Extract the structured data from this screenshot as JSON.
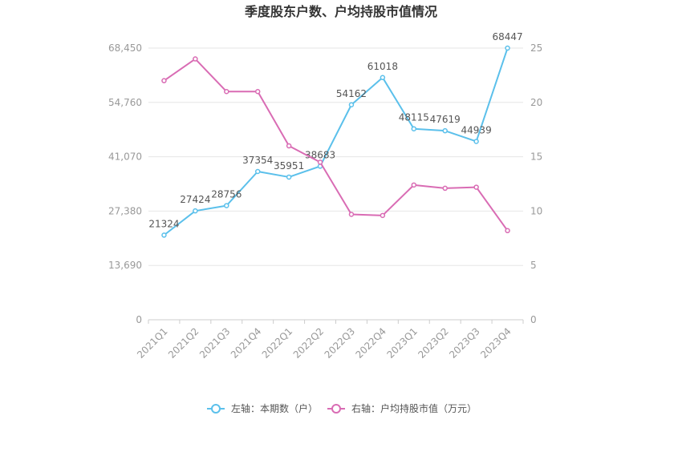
{
  "chart_data": {
    "type": "line",
    "title": "季度股东户数、户均持股市值情况",
    "categories": [
      "2021Q1",
      "2021Q2",
      "2021Q3",
      "2021Q4",
      "2022Q1",
      "2022Q2",
      "2022Q3",
      "2022Q4",
      "2023Q1",
      "2023Q2",
      "2023Q3",
      "2023Q4"
    ],
    "series": [
      {
        "name": "左轴：本期数（户）",
        "axis": "left",
        "color": "#5bc0eb",
        "values": [
          21324,
          27424,
          28756,
          37354,
          35951,
          38683,
          54162,
          61018,
          48115,
          47619,
          44939,
          68447
        ],
        "labels": [
          "21324",
          "27424",
          "28756",
          "37354",
          "35951",
          "38683",
          "54162",
          "61018",
          "48115",
          "47619",
          "44939",
          "68447"
        ]
      },
      {
        "name": "右轴：户均持股市值（万元）",
        "axis": "right",
        "color": "#d96cb4",
        "values": [
          22.0,
          24.0,
          21.0,
          21.0,
          16.0,
          14.5,
          9.7,
          9.6,
          12.4,
          12.1,
          12.2,
          8.2
        ]
      }
    ],
    "y_left": {
      "min": 0,
      "max": 68450,
      "ticks": [
        0,
        13690,
        27380,
        41070,
        54760,
        68450
      ],
      "tick_labels": [
        "0",
        "13,690",
        "27,380",
        "41,070",
        "54,760",
        "68,450"
      ]
    },
    "y_right": {
      "min": 0,
      "max": 25,
      "ticks": [
        0,
        5,
        10,
        15,
        20,
        25
      ],
      "tick_labels": [
        "0",
        "5",
        "10",
        "15",
        "20",
        "25"
      ]
    },
    "grid": true,
    "legend_position": "bottom"
  }
}
